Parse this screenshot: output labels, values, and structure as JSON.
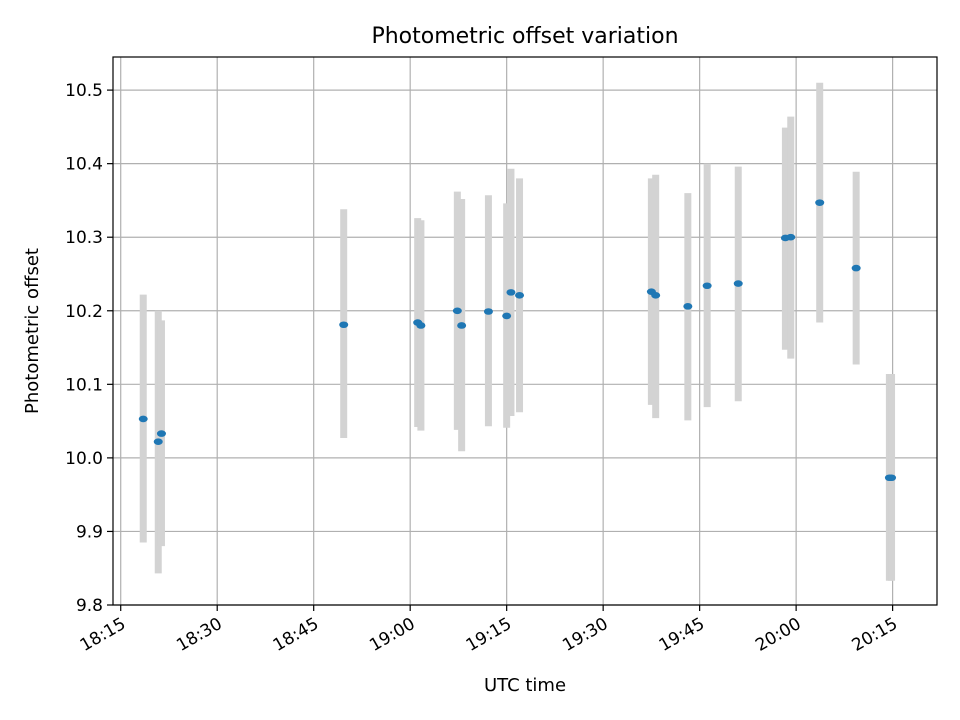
{
  "chart_data": {
    "type": "scatter",
    "title": "Photometric offset variation",
    "xlabel": "UTC time",
    "ylabel": "Photometric offset",
    "ylim": [
      9.8,
      10.545
    ],
    "xlim_minutes": [
      1093.8,
      1221.9
    ],
    "grid": true,
    "x_ticks": [
      {
        "label": "18:15",
        "minutes": 1095
      },
      {
        "label": "18:30",
        "minutes": 1110
      },
      {
        "label": "18:45",
        "minutes": 1125
      },
      {
        "label": "19:00",
        "minutes": 1140
      },
      {
        "label": "19:15",
        "minutes": 1155
      },
      {
        "label": "19:30",
        "minutes": 1170
      },
      {
        "label": "19:45",
        "minutes": 1185
      },
      {
        "label": "20:00",
        "minutes": 1200
      },
      {
        "label": "20:15",
        "minutes": 1215
      }
    ],
    "y_ticks": [
      9.8,
      9.9,
      10.0,
      10.1,
      10.2,
      10.3,
      10.4,
      10.5
    ],
    "marker_color": "#1f77b4",
    "errorbar_color": "#d3d3d3",
    "points": [
      {
        "t": "18:18:30",
        "y": 10.053,
        "lo": 9.885,
        "hi": 10.222
      },
      {
        "t": "18:20:50",
        "y": 10.022,
        "lo": 9.843,
        "hi": 10.2
      },
      {
        "t": "18:21:20",
        "y": 10.033,
        "lo": 9.88,
        "hi": 10.187
      },
      {
        "t": "18:49:40",
        "y": 10.181,
        "lo": 10.027,
        "hi": 10.338
      },
      {
        "t": "19:01:10",
        "y": 10.184,
        "lo": 10.042,
        "hi": 10.326
      },
      {
        "t": "19:01:40",
        "y": 10.18,
        "lo": 10.037,
        "hi": 10.323
      },
      {
        "t": "19:07:20",
        "y": 10.2,
        "lo": 10.038,
        "hi": 10.362
      },
      {
        "t": "19:08:00",
        "y": 10.18,
        "lo": 10.009,
        "hi": 10.352
      },
      {
        "t": "19:12:10",
        "y": 10.199,
        "lo": 10.043,
        "hi": 10.357
      },
      {
        "t": "19:15:00",
        "y": 10.193,
        "lo": 10.041,
        "hi": 10.346
      },
      {
        "t": "19:15:40",
        "y": 10.225,
        "lo": 10.057,
        "hi": 10.393
      },
      {
        "t": "19:17:00",
        "y": 10.221,
        "lo": 10.062,
        "hi": 10.38
      },
      {
        "t": "19:37:30",
        "y": 10.226,
        "lo": 10.072,
        "hi": 10.38
      },
      {
        "t": "19:38:10",
        "y": 10.221,
        "lo": 10.054,
        "hi": 10.385
      },
      {
        "t": "19:43:10",
        "y": 10.206,
        "lo": 10.051,
        "hi": 10.36
      },
      {
        "t": "19:46:10",
        "y": 10.234,
        "lo": 10.069,
        "hi": 10.4
      },
      {
        "t": "19:51:00",
        "y": 10.237,
        "lo": 10.077,
        "hi": 10.396
      },
      {
        "t": "19:58:20",
        "y": 10.299,
        "lo": 10.147,
        "hi": 10.449
      },
      {
        "t": "19:59:10",
        "y": 10.3,
        "lo": 10.135,
        "hi": 10.464
      },
      {
        "t": "20:03:40",
        "y": 10.347,
        "lo": 10.184,
        "hi": 10.51
      },
      {
        "t": "20:09:20",
        "y": 10.258,
        "lo": 10.127,
        "hi": 10.389
      },
      {
        "t": "20:14:30",
        "y": 9.973,
        "lo": 9.833,
        "hi": 10.114
      },
      {
        "t": "20:14:50",
        "y": 9.973,
        "lo": 9.833,
        "hi": 10.114
      }
    ]
  }
}
